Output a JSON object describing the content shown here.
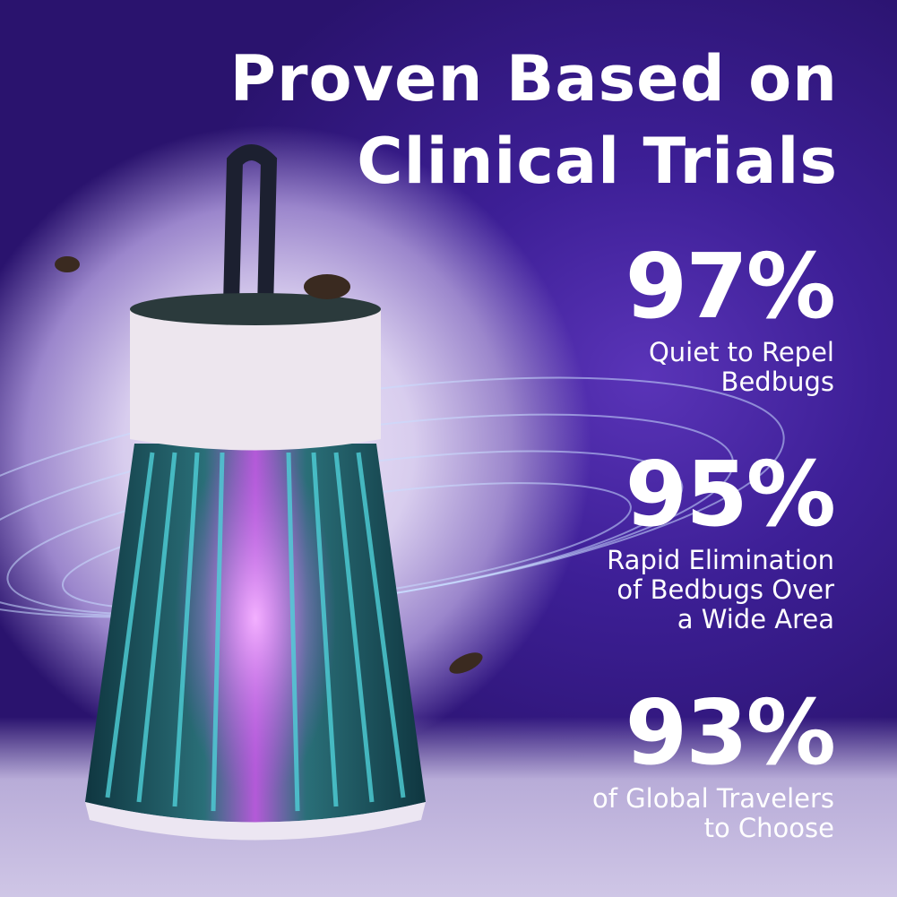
{
  "headline": {
    "line1": "Proven Based on",
    "line2": "Clinical Trials"
  },
  "stats": [
    {
      "value": "97%",
      "label_lines": [
        "Quiet to Repel",
        "Bedbugs"
      ]
    },
    {
      "value": "95%",
      "label_lines": [
        "Rapid Elimination",
        "of Bedbugs Over",
        "a Wide Area"
      ]
    },
    {
      "value": "93%",
      "label_lines": [
        "of Global Travelers",
        "to Choose"
      ]
    }
  ],
  "colors": {
    "background": "#3d1f96",
    "text": "#ffffff",
    "lamp_body": "#1f5560",
    "uv_glow": "#d070f0"
  }
}
